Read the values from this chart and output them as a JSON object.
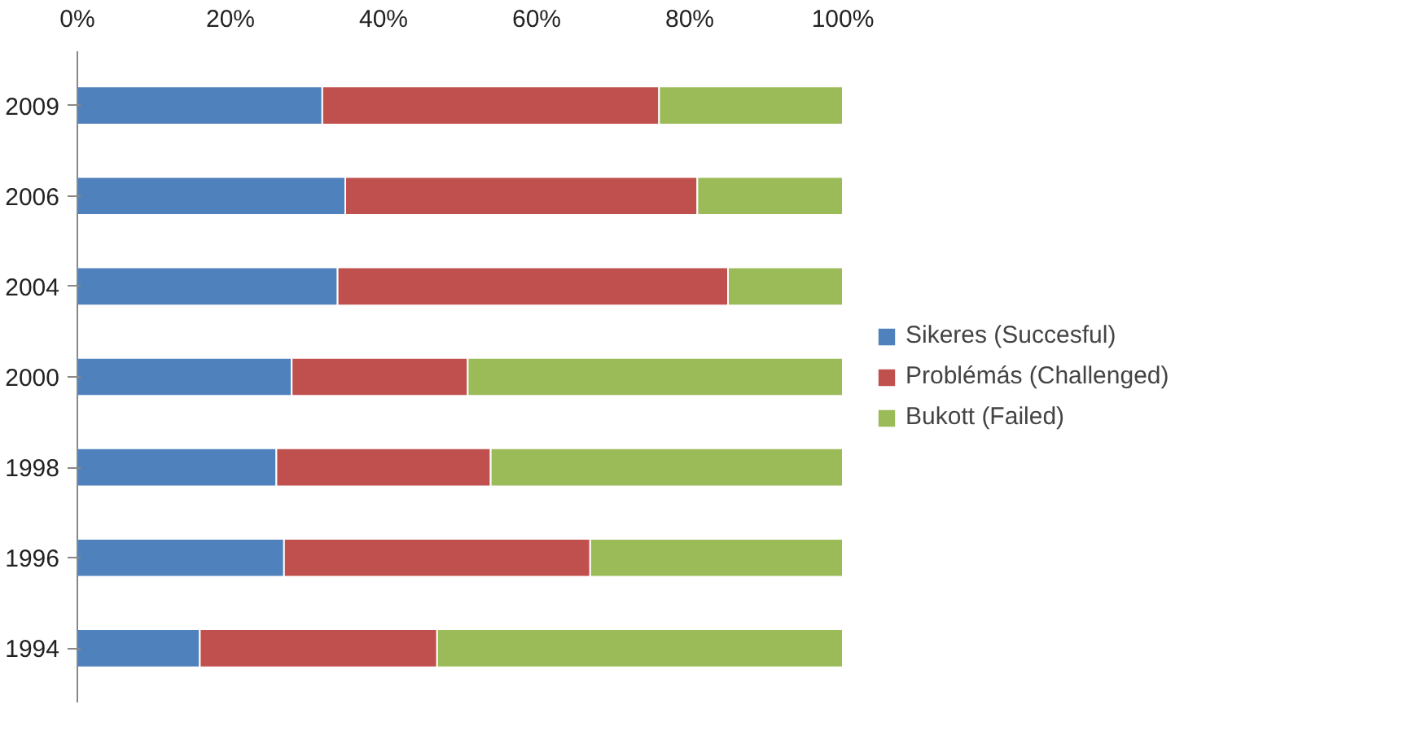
{
  "chart_data": {
    "type": "bar",
    "orientation": "horizontal",
    "stacked": true,
    "categories": [
      "2009",
      "2006",
      "2004",
      "2000",
      "1998",
      "1996",
      "1994"
    ],
    "series": [
      {
        "name": "Sikeres (Succesful)",
        "color": "#4f81bd",
        "values": [
          32,
          35,
          34,
          28,
          26,
          27,
          16
        ]
      },
      {
        "name": "Problémás (Challenged)",
        "color": "#c0504d",
        "values": [
          44,
          46,
          51,
          23,
          28,
          40,
          31
        ]
      },
      {
        "name": "Bukott (Failed)",
        "color": "#9bbb59",
        "values": [
          24,
          19,
          15,
          49,
          46,
          33,
          53
        ]
      }
    ],
    "xlim": [
      0,
      100
    ],
    "xticks": [
      {
        "value": 0,
        "label": "0%"
      },
      {
        "value": 20,
        "label": "20%"
      },
      {
        "value": 40,
        "label": "40%"
      },
      {
        "value": 60,
        "label": "60%"
      },
      {
        "value": 80,
        "label": "80%"
      },
      {
        "value": 100,
        "label": "100%"
      }
    ],
    "grid": false,
    "legend": "right"
  }
}
